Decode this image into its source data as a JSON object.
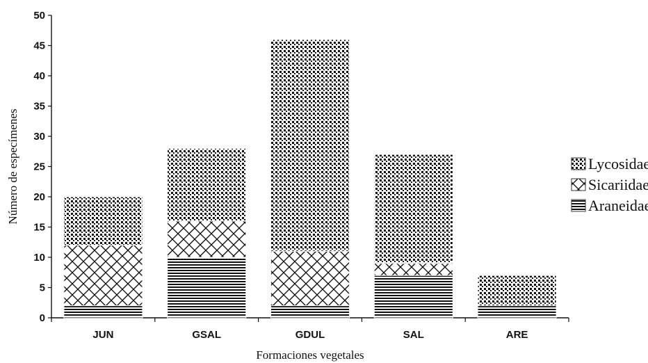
{
  "chart_data": {
    "type": "bar",
    "stacked": true,
    "title": "",
    "xlabel": "Formaciones vegetales",
    "ylabel": "Número de especímenes",
    "categories": [
      "JUN",
      "GSAL",
      "GDUL",
      "SAL",
      "ARE"
    ],
    "ylim": [
      0,
      50
    ],
    "yticks": [
      0,
      5,
      10,
      15,
      20,
      25,
      30,
      35,
      40,
      45,
      50
    ],
    "grid": false,
    "legend_position": "right",
    "series": [
      {
        "name": "Araneidae",
        "pattern": "horizontal-lines",
        "values": [
          2,
          10,
          2,
          7,
          2
        ]
      },
      {
        "name": "Sicariidae",
        "pattern": "crosshatch",
        "values": [
          10,
          6,
          9,
          2,
          0
        ]
      },
      {
        "name": "Lycosidae",
        "pattern": "dots",
        "values": [
          8,
          12,
          35,
          18,
          5
        ]
      }
    ],
    "legend_order": [
      "Lycosidae",
      "Sicariidae",
      "Araneidae"
    ]
  }
}
